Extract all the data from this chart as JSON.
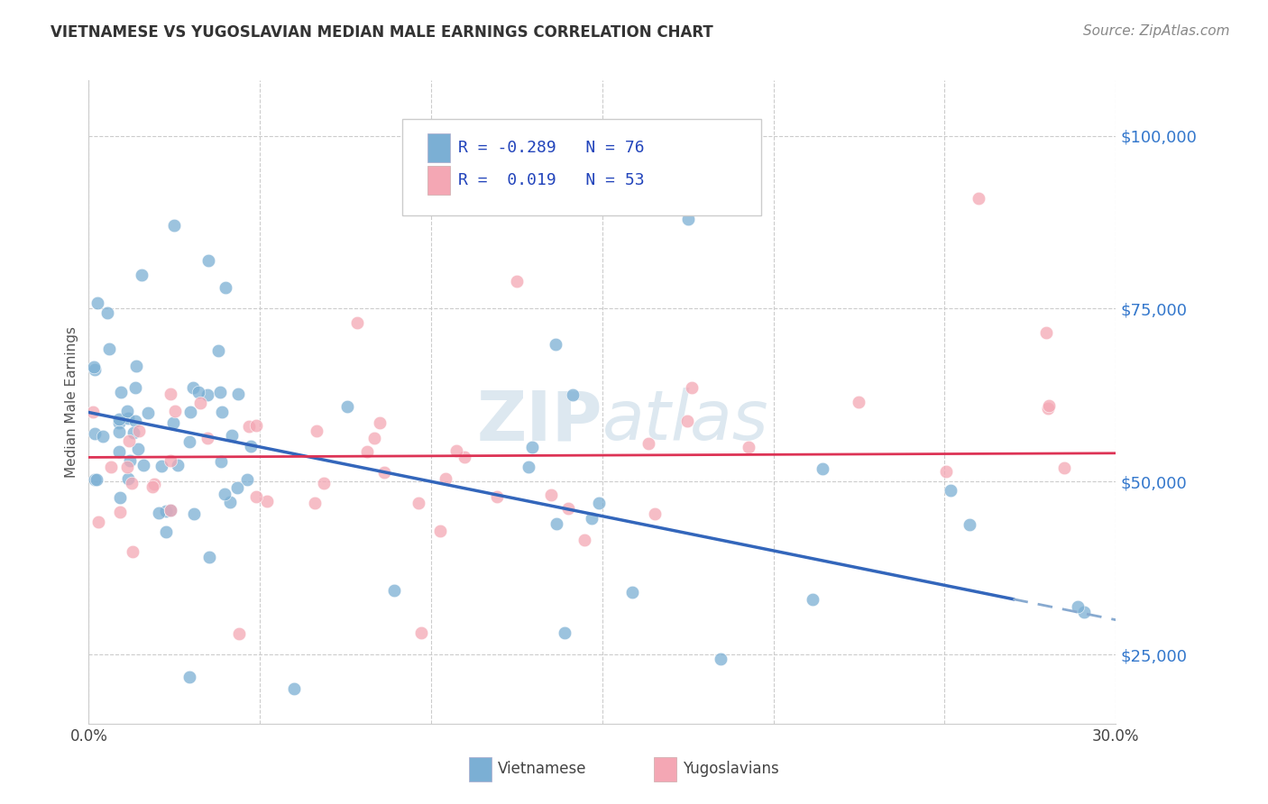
{
  "title": "VIETNAMESE VS YUGOSLAVIAN MEDIAN MALE EARNINGS CORRELATION CHART",
  "source": "Source: ZipAtlas.com",
  "ylabel": "Median Male Earnings",
  "xlim": [
    0.0,
    0.3
  ],
  "ylim": [
    15000,
    108000
  ],
  "yticks": [
    25000,
    50000,
    75000,
    100000
  ],
  "ytick_labels": [
    "$25,000",
    "$50,000",
    "$75,000",
    "$100,000"
  ],
  "xticks": [
    0.0,
    0.05,
    0.1,
    0.15,
    0.2,
    0.25,
    0.3
  ],
  "xtick_labels": [
    "0.0%",
    "",
    "",
    "",
    "",
    "",
    "30.0%"
  ],
  "viet_color": "#7bafd4",
  "yugo_color": "#f4a7b4",
  "viet_line_color": "#3366bb",
  "yugo_line_color": "#dd3355",
  "viet_line_color_dashed": "#88aad0",
  "background_color": "#ffffff",
  "grid_color": "#cccccc",
  "ytick_color": "#3377cc",
  "title_color": "#333333",
  "watermark_color": "#dde8f0",
  "legend_r1_label": "R = -0.289",
  "legend_n1_label": "N = 76",
  "legend_r2_label": "R =  0.019",
  "legend_n2_label": "N = 53"
}
